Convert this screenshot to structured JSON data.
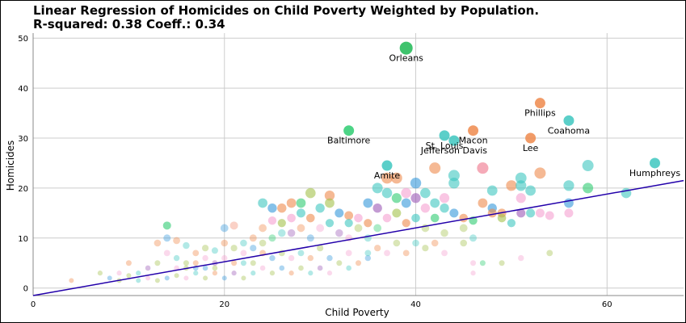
{
  "chart_data": {
    "type": "scatter",
    "title": "Linear Regression of Homicides on Child Poverty Weighted by Population.",
    "subtitle": "R-squared: 0.38  Coeff.:  0.34",
    "xlabel": "Child Poverty",
    "ylabel": "Homicides",
    "xlim": [
      0,
      68
    ],
    "ylim": [
      -1.5,
      51
    ],
    "xticks": [
      0,
      20,
      40,
      60
    ],
    "yticks": [
      0,
      10,
      20,
      30,
      40,
      50
    ],
    "grid": true,
    "regression_line": {
      "x": [
        0,
        68
      ],
      "y": [
        -1.5,
        21.5
      ],
      "color": "#2200aa"
    },
    "labeled_points": [
      {
        "label": "Orleans",
        "x": 39,
        "y": 48,
        "color": "#1db954"
      },
      {
        "label": "Phillips",
        "x": 53,
        "y": 37,
        "color": "#ef8a4c"
      },
      {
        "label": "Coahoma",
        "x": 56,
        "y": 33.5,
        "color": "#3ec7c0"
      },
      {
        "label": "Baltimore",
        "x": 33,
        "y": 31.5,
        "color": "#2ecc71"
      },
      {
        "label": "Macon",
        "x": 46,
        "y": 31.5,
        "color": "#ef8a4c"
      },
      {
        "label": "St. Louis",
        "x": 43,
        "y": 30.5,
        "color": "#3ec7c0"
      },
      {
        "label": "Jefferson Davis",
        "x": 44,
        "y": 29.5,
        "color": "#3ec7c0"
      },
      {
        "label": "Lee",
        "x": 52,
        "y": 30,
        "color": "#ef8a4c"
      },
      {
        "label": "Humphreys",
        "x": 65,
        "y": 25,
        "color": "#3ec7c0"
      },
      {
        "label": "Amite",
        "x": 37,
        "y": 24.5,
        "color": "#3ec7c0"
      }
    ],
    "points": [
      [
        4,
        1.5,
        "#ef8a4c"
      ],
      [
        7,
        3,
        "#a3c14b"
      ],
      [
        8,
        2,
        "#3498db"
      ],
      [
        9,
        3,
        "#f5a0d0"
      ],
      [
        10,
        2.5,
        "#a3c14b"
      ],
      [
        10,
        5,
        "#ef8a4c"
      ],
      [
        11,
        3,
        "#3ec7c0"
      ],
      [
        12,
        4,
        "#9b59b6"
      ],
      [
        13,
        5,
        "#a3c14b"
      ],
      [
        13,
        9,
        "#ef8a4c"
      ],
      [
        14,
        12.5,
        "#2ecc71"
      ],
      [
        14,
        10,
        "#3498db"
      ],
      [
        14,
        7,
        "#f5a0d0"
      ],
      [
        15,
        9.5,
        "#ef8a4c"
      ],
      [
        15,
        6,
        "#3ec7c0"
      ],
      [
        16,
        8.5,
        "#3ec7c0"
      ],
      [
        16,
        5,
        "#a3c14b"
      ],
      [
        17,
        7,
        "#ef8a4c"
      ],
      [
        17,
        4,
        "#3498db"
      ],
      [
        18,
        8,
        "#a3c14b"
      ],
      [
        18,
        6,
        "#f5a0d0"
      ],
      [
        19,
        7.5,
        "#3ec7c0"
      ],
      [
        19,
        5,
        "#9b59b6"
      ],
      [
        20,
        12,
        "#3498db"
      ],
      [
        20,
        9,
        "#ef8a4c"
      ],
      [
        21,
        12.5,
        "#f7b3a0"
      ],
      [
        21,
        8,
        "#a3c14b"
      ],
      [
        22,
        9,
        "#3ec7c0"
      ],
      [
        22,
        7,
        "#f5a0d0"
      ],
      [
        23,
        10,
        "#ef8a4c"
      ],
      [
        23,
        8,
        "#3498db"
      ],
      [
        24,
        17,
        "#3ec7c0"
      ],
      [
        24,
        12,
        "#ef8a4c"
      ],
      [
        24,
        9,
        "#a3c14b"
      ],
      [
        25,
        16,
        "#3498db"
      ],
      [
        25,
        13.5,
        "#f5a0d0"
      ],
      [
        25,
        10,
        "#2ecc71"
      ],
      [
        26,
        16,
        "#ef8a4c"
      ],
      [
        26,
        13,
        "#a3c14b"
      ],
      [
        26,
        11,
        "#3ec7c0"
      ],
      [
        27,
        17,
        "#ef8a4c"
      ],
      [
        27,
        14,
        "#f5a0d0"
      ],
      [
        27,
        11,
        "#9b59b6"
      ],
      [
        28,
        17,
        "#2ecc71"
      ],
      [
        28,
        15,
        "#3ec7c0"
      ],
      [
        28,
        12,
        "#ef8a4c"
      ],
      [
        29,
        19,
        "#a3c14b"
      ],
      [
        29,
        14,
        "#ef8a4c"
      ],
      [
        29,
        10,
        "#3498db"
      ],
      [
        30,
        16,
        "#3ec7c0"
      ],
      [
        30,
        12,
        "#f5a0d0"
      ],
      [
        31,
        18.5,
        "#ef8a4c"
      ],
      [
        31,
        17,
        "#a3c14b"
      ],
      [
        31,
        13,
        "#3ec7c0"
      ],
      [
        32,
        15,
        "#3498db"
      ],
      [
        32,
        11,
        "#9b59b6"
      ],
      [
        33,
        14.5,
        "#ef8a4c"
      ],
      [
        33,
        13,
        "#3ec7c0"
      ],
      [
        33,
        10,
        "#f5a0d0"
      ],
      [
        34,
        14,
        "#f5a0d0"
      ],
      [
        34,
        12,
        "#a3c14b"
      ],
      [
        35,
        17,
        "#3498db"
      ],
      [
        35,
        13,
        "#ef8a4c"
      ],
      [
        35,
        10,
        "#3ec7c0"
      ],
      [
        36,
        20,
        "#3ec7c0"
      ],
      [
        36,
        16,
        "#9b59b6"
      ],
      [
        36,
        12,
        "#2ecc71"
      ],
      [
        37,
        22,
        "#ef8a4c"
      ],
      [
        37,
        19,
        "#3ec7c0"
      ],
      [
        37,
        14,
        "#f5a0d0"
      ],
      [
        38,
        22,
        "#ef8a4c"
      ],
      [
        38,
        18,
        "#2ecc71"
      ],
      [
        38,
        15,
        "#a3c14b"
      ],
      [
        39,
        19,
        "#f5a0d0"
      ],
      [
        39,
        17,
        "#3498db"
      ],
      [
        39,
        13,
        "#ef8a4c"
      ],
      [
        40,
        21,
        "#3498db"
      ],
      [
        40,
        18,
        "#9b59b6"
      ],
      [
        40,
        14,
        "#3ec7c0"
      ],
      [
        41,
        16,
        "#f5a0d0"
      ],
      [
        41,
        19,
        "#3ec7c0"
      ],
      [
        41,
        12,
        "#a3c14b"
      ],
      [
        42,
        24,
        "#ef8a4c"
      ],
      [
        42,
        17,
        "#3ec7c0"
      ],
      [
        42,
        14,
        "#2ecc71"
      ],
      [
        43,
        18,
        "#f5a0d0"
      ],
      [
        43,
        16,
        "#3ec7c0"
      ],
      [
        43,
        11,
        "#a3c14b"
      ],
      [
        44,
        22.5,
        "#3ec7c0"
      ],
      [
        44,
        21,
        "#3ec7c0"
      ],
      [
        44,
        15,
        "#3498db"
      ],
      [
        45,
        14,
        "#ef8a4c"
      ],
      [
        45,
        12,
        "#a3c14b"
      ],
      [
        46,
        13.5,
        "#2ecc71"
      ],
      [
        46,
        10,
        "#3ec7c0"
      ],
      [
        47,
        24,
        "#ef8a4c"
      ],
      [
        47,
        24,
        "#f5a0d0"
      ],
      [
        47,
        17,
        "#ef8a4c"
      ],
      [
        48,
        19.5,
        "#3ec7c0"
      ],
      [
        48,
        16,
        "#3498db"
      ],
      [
        48,
        15,
        "#ef8a4c"
      ],
      [
        49,
        15,
        "#ef8a4c"
      ],
      [
        49,
        14,
        "#a3c14b"
      ],
      [
        50,
        20.5,
        "#ef8a4c"
      ],
      [
        50,
        13,
        "#3ec7c0"
      ],
      [
        51,
        22,
        "#3ec7c0"
      ],
      [
        51,
        20.5,
        "#3ec7c0"
      ],
      [
        51,
        18,
        "#f5a0d0"
      ],
      [
        51,
        15,
        "#9b59b6"
      ],
      [
        52,
        19.5,
        "#3ec7c0"
      ],
      [
        52,
        15,
        "#3ec7c0"
      ],
      [
        53,
        23,
        "#ef8a4c"
      ],
      [
        53,
        15,
        "#f5a0d0"
      ],
      [
        54,
        14.5,
        "#f5a0d0"
      ],
      [
        56,
        20.5,
        "#3ec7c0"
      ],
      [
        56,
        17,
        "#3498db"
      ],
      [
        56,
        15,
        "#f5a0d0"
      ],
      [
        58,
        24.5,
        "#3ec7c0"
      ],
      [
        58,
        20,
        "#2ecc71"
      ],
      [
        62,
        19,
        "#3ec7c0"
      ],
      [
        37,
        7,
        "#f5a0d0"
      ],
      [
        38,
        9,
        "#a3c14b"
      ],
      [
        39,
        7,
        "#ef8a4c"
      ],
      [
        40,
        9,
        "#3ec7c0"
      ],
      [
        41,
        8,
        "#a3c14b"
      ],
      [
        42,
        9,
        "#ef8a4c"
      ],
      [
        43,
        7,
        "#f5a0d0"
      ],
      [
        45,
        9,
        "#a3c14b"
      ],
      [
        46,
        5,
        "#f5a0d0"
      ],
      [
        46,
        3,
        "#f5a0d0"
      ],
      [
        47,
        5,
        "#2ecc71"
      ],
      [
        49,
        5,
        "#a3c14b"
      ],
      [
        51,
        6,
        "#f5a0d0"
      ],
      [
        54,
        7,
        "#a3c14b"
      ],
      [
        35,
        6,
        "#3498db"
      ],
      [
        34,
        5,
        "#ef8a4c"
      ],
      [
        33,
        4,
        "#3ec7c0"
      ],
      [
        32,
        5,
        "#a3c14b"
      ],
      [
        31,
        3,
        "#f5a0d0"
      ],
      [
        30,
        4,
        "#9b59b6"
      ],
      [
        29,
        3,
        "#3ec7c0"
      ],
      [
        28,
        4,
        "#a3c14b"
      ],
      [
        27,
        3,
        "#ef8a4c"
      ],
      [
        26,
        4,
        "#3498db"
      ],
      [
        25,
        3,
        "#a3c14b"
      ],
      [
        24,
        4,
        "#f5a0d0"
      ],
      [
        23,
        3,
        "#3ec7c0"
      ],
      [
        22,
        2,
        "#a3c14b"
      ],
      [
        21,
        3,
        "#9b59b6"
      ],
      [
        20,
        2,
        "#3498db"
      ],
      [
        19,
        3,
        "#ef8a4c"
      ],
      [
        18,
        2,
        "#a3c14b"
      ],
      [
        17,
        3,
        "#3ec7c0"
      ],
      [
        16,
        2,
        "#f5a0d0"
      ],
      [
        15,
        2.5,
        "#a3c14b"
      ],
      [
        14,
        2,
        "#3498db"
      ],
      [
        13,
        1.5,
        "#a3c14b"
      ],
      [
        12,
        2,
        "#f5a0d0"
      ],
      [
        11,
        1.5,
        "#3ec7c0"
      ],
      [
        9,
        1.5,
        "#a3c14b"
      ],
      [
        36,
        8,
        "#ef8a4c"
      ],
      [
        35,
        7,
        "#3ec7c0"
      ],
      [
        33,
        7,
        "#f5a0d0"
      ],
      [
        31,
        6,
        "#3498db"
      ],
      [
        30,
        8,
        "#a3c14b"
      ],
      [
        29,
        6,
        "#ef8a4c"
      ],
      [
        28,
        7,
        "#3ec7c0"
      ],
      [
        27,
        6,
        "#f5a0d0"
      ],
      [
        26,
        7,
        "#a3c14b"
      ],
      [
        25,
        6,
        "#3498db"
      ],
      [
        24,
        7,
        "#ef8a4c"
      ],
      [
        23,
        5,
        "#a3c14b"
      ],
      [
        22,
        5,
        "#3ec7c0"
      ],
      [
        21,
        5,
        "#ef8a4c"
      ],
      [
        20,
        6,
        "#f5a0d0"
      ],
      [
        19,
        4,
        "#a3c14b"
      ],
      [
        18,
        4,
        "#3498db"
      ],
      [
        17,
        5,
        "#ef8a4c"
      ],
      [
        16,
        4,
        "#a3c14b"
      ],
      [
        15,
        4,
        "#f5a0d0"
      ]
    ]
  }
}
